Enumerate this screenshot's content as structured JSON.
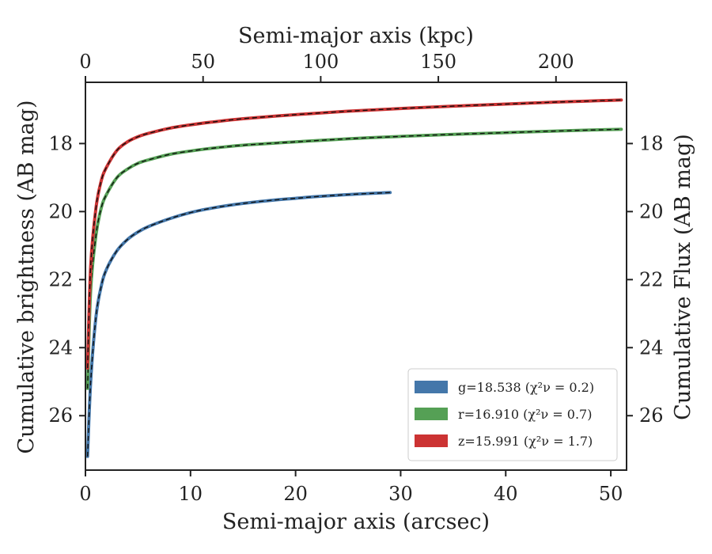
{
  "chart_data": {
    "type": "line",
    "title": "",
    "xlabel": "Semi-major axis (arcsec)",
    "ylabel": "Cumulative brightness (AB mag)",
    "x2label": "Semi-major axis (kpc)",
    "y2label": "Cumulative Flux (AB mag)",
    "xlim": [
      0,
      51.5
    ],
    "ylim": [
      27.6,
      16.2
    ],
    "y_inverted": true,
    "x2lim": [
      0,
      230
    ],
    "x_ticks": [
      "0",
      "10",
      "20",
      "30",
      "40",
      "50"
    ],
    "x_tick_values": [
      0,
      10,
      20,
      30,
      40,
      50
    ],
    "x2_ticks": [
      "0",
      "50",
      "100",
      "150",
      "200"
    ],
    "x2_tick_values": [
      0,
      50,
      100,
      150,
      200
    ],
    "y_ticks": [
      "18",
      "20",
      "22",
      "24",
      "26"
    ],
    "y_tick_values": [
      18,
      20,
      22,
      24,
      26
    ],
    "y2_ticks": [
      "18",
      "20",
      "22",
      "24",
      "26"
    ],
    "grid": false,
    "legend_position": "lower-right",
    "model_line_style": "dashed black overlay",
    "series": [
      {
        "name": "g=18.538 (χ²ν = 0.2)",
        "color": "#4477aa",
        "x": [
          0.2,
          0.5,
          1,
          1.5,
          2,
          3,
          4,
          5,
          6,
          8,
          10,
          12,
          15,
          18,
          20,
          22,
          25,
          29
        ],
        "y": [
          27.2,
          25.0,
          23.1,
          22.2,
          21.7,
          21.15,
          20.82,
          20.6,
          20.44,
          20.21,
          20.03,
          19.9,
          19.76,
          19.66,
          19.61,
          19.56,
          19.5,
          19.44
        ]
      },
      {
        "name": "r=16.910 (χ²ν = 0.7)",
        "color": "#55a055",
        "x": [
          0.2,
          0.5,
          1,
          1.5,
          2,
          3,
          4,
          5,
          6,
          8,
          10,
          12,
          15,
          20,
          25,
          30,
          35,
          40,
          45,
          51
        ],
        "y": [
          25.2,
          22.3,
          20.7,
          19.9,
          19.5,
          19.0,
          18.75,
          18.58,
          18.48,
          18.32,
          18.22,
          18.14,
          18.05,
          17.95,
          17.86,
          17.79,
          17.73,
          17.68,
          17.63,
          17.58
        ]
      },
      {
        "name": "z=15.991 (χ²ν = 1.7)",
        "color": "#cc3333",
        "x": [
          0.2,
          0.5,
          1,
          1.5,
          2,
          3,
          4,
          5,
          6,
          8,
          10,
          12,
          15,
          20,
          25,
          30,
          35,
          40,
          45,
          51
        ],
        "y": [
          24.6,
          21.6,
          19.9,
          19.1,
          18.7,
          18.2,
          17.95,
          17.8,
          17.7,
          17.55,
          17.45,
          17.37,
          17.27,
          17.15,
          17.05,
          16.97,
          16.9,
          16.84,
          16.78,
          16.72
        ]
      }
    ]
  }
}
